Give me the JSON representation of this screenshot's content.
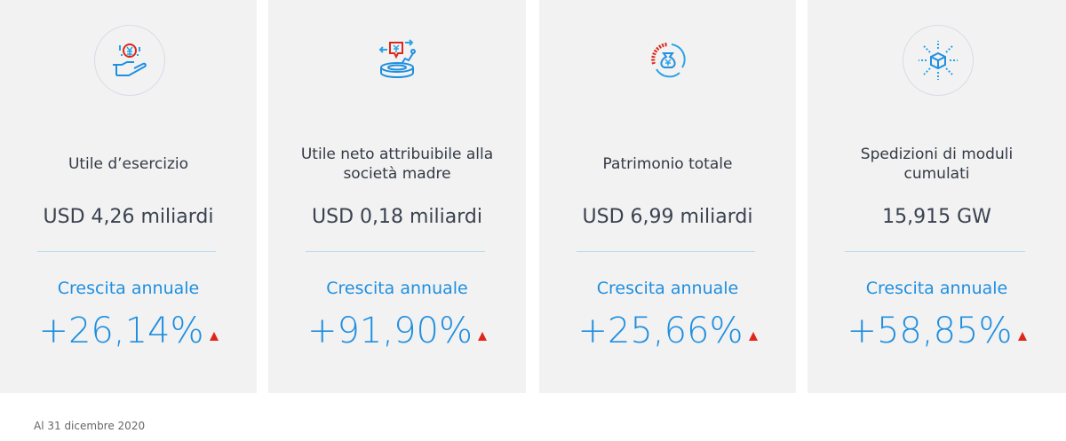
{
  "cards": [
    {
      "icon": "hand-yen-coin-icon",
      "title": "Utile d’esercizio",
      "value": "USD 4,26 miliardi",
      "growth_label": "Crescita annuale",
      "growth": "+26,14%",
      "trend": "up"
    },
    {
      "icon": "yen-coin-exchange-icon",
      "title": "Utile neto attribuibile alla società madre",
      "value": "USD 0,18 miliardi",
      "growth_label": "Crescita annuale",
      "growth": "+91,90%",
      "trend": "up"
    },
    {
      "icon": "yen-moneybag-chart-icon",
      "title": "Patrimonio totale",
      "value": "USD 6,99 miliardi",
      "growth_label": "Crescita annuale",
      "growth": "+25,66%",
      "trend": "up"
    },
    {
      "icon": "module-shipment-arrows-icon",
      "title": "Spedizioni di moduli cumulati",
      "value": "15,915 GW",
      "growth_label": "Crescita annuale",
      "growth": "+58,85%",
      "trend": "up"
    }
  ],
  "footnote": "Al 31 dicembre 2020",
  "colors": {
    "accent": "#1f8fe0",
    "up": "#e0261b",
    "card_bg": "#f2f2f2"
  }
}
